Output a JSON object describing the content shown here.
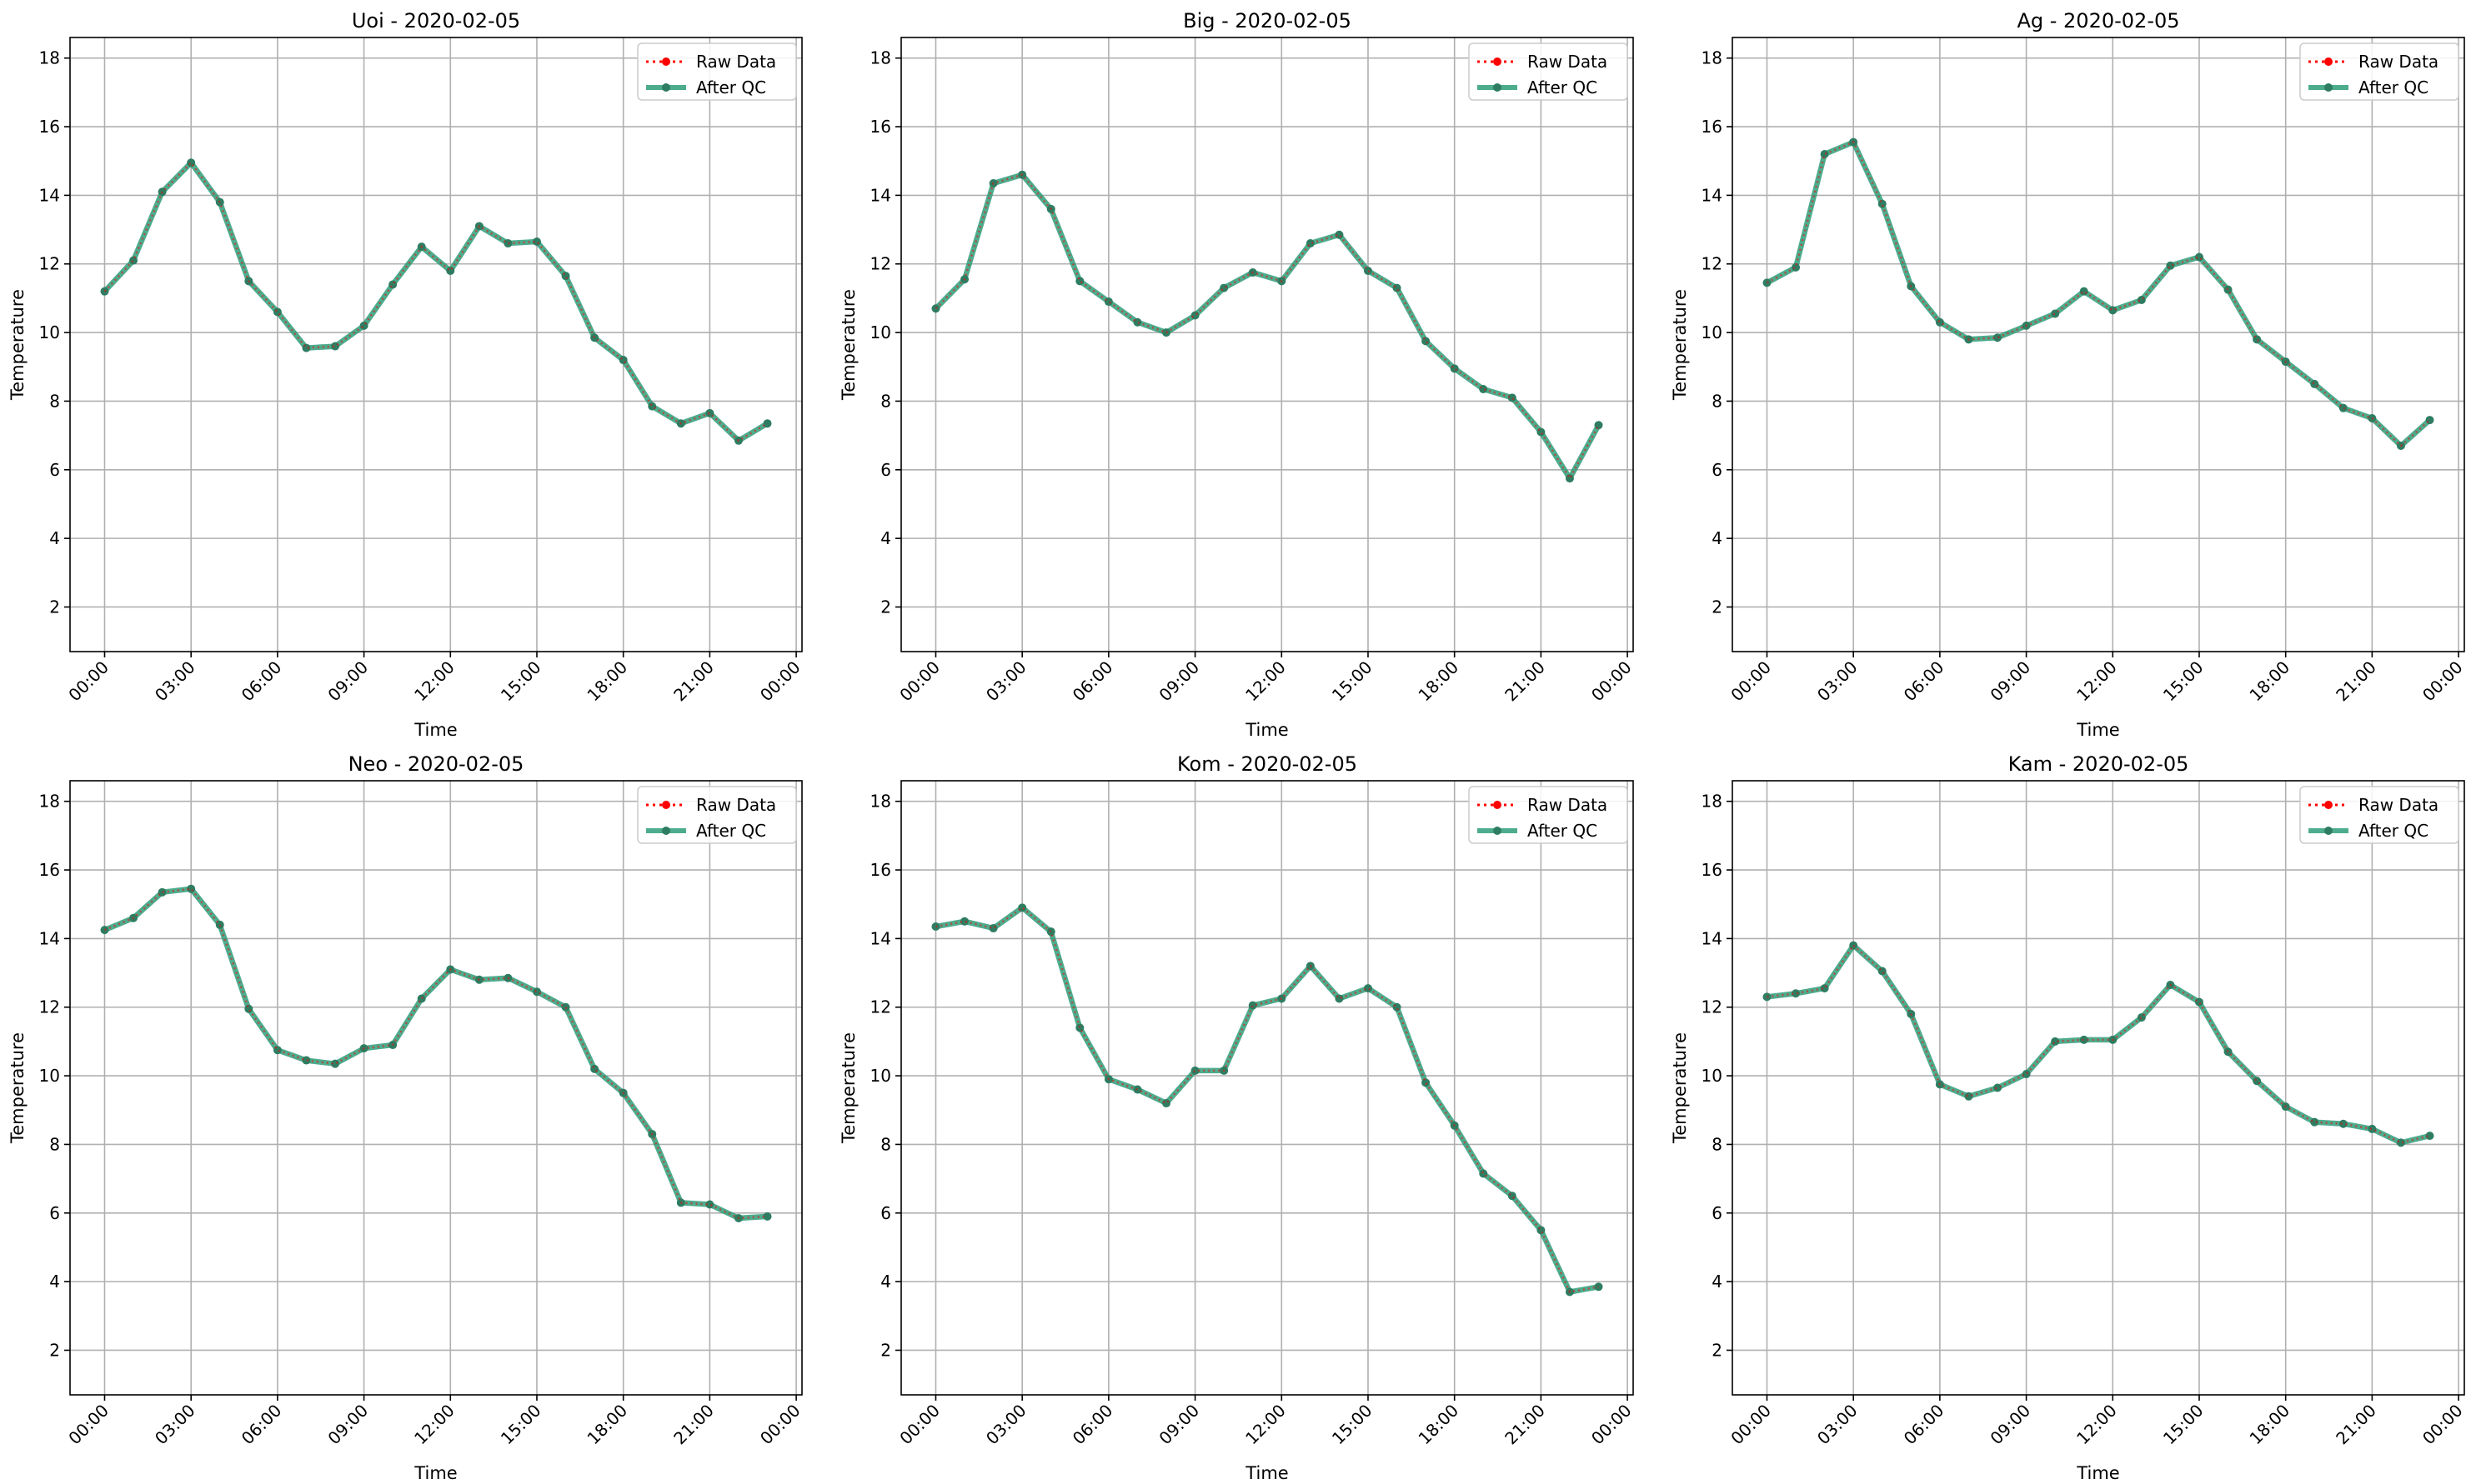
{
  "chart_data": [
    {
      "type": "line",
      "title": "Uoi - 2020-02-05",
      "xlabel": "Time",
      "ylabel": "Temperature",
      "x_tick_labels": [
        "00:00",
        "03:00",
        "06:00",
        "09:00",
        "12:00",
        "15:00",
        "18:00",
        "21:00",
        "00:00"
      ],
      "y_ticks": [
        2,
        4,
        6,
        8,
        10,
        12,
        14,
        16,
        18
      ],
      "ylim": [
        0.7,
        18.6
      ],
      "xlim_hours": [
        -1.2,
        24.2
      ],
      "grid": true,
      "legend_position": "upper right",
      "legend": [
        "Raw Data",
        "After QC"
      ],
      "series": [
        {
          "name": "Raw Data",
          "color": "#ff0000",
          "style": "dotted",
          "values": [
            11.2,
            12.1,
            14.1,
            14.95,
            13.8,
            11.5,
            10.6,
            9.55,
            9.6,
            10.2,
            11.4,
            12.5,
            11.8,
            13.1,
            12.6,
            12.65,
            11.65,
            9.85,
            9.2,
            7.85,
            7.35,
            7.65,
            6.85,
            7.35
          ]
        },
        {
          "name": "After QC",
          "color": "#2e9e7a",
          "style": "solid",
          "values": [
            11.2,
            12.1,
            14.1,
            14.95,
            13.8,
            11.5,
            10.6,
            9.55,
            9.6,
            10.2,
            11.4,
            12.5,
            11.8,
            13.1,
            12.6,
            12.65,
            11.65,
            9.85,
            9.2,
            7.85,
            7.35,
            7.65,
            6.85,
            7.35
          ]
        }
      ]
    },
    {
      "type": "line",
      "title": "Big - 2020-02-05",
      "xlabel": "Time",
      "ylabel": "Temperature",
      "x_tick_labels": [
        "00:00",
        "03:00",
        "06:00",
        "09:00",
        "12:00",
        "15:00",
        "18:00",
        "21:00",
        "00:00"
      ],
      "y_ticks": [
        2,
        4,
        6,
        8,
        10,
        12,
        14,
        16,
        18
      ],
      "ylim": [
        0.7,
        18.6
      ],
      "xlim_hours": [
        -1.2,
        24.2
      ],
      "grid": true,
      "legend_position": "upper right",
      "legend": [
        "Raw Data",
        "After QC"
      ],
      "series": [
        {
          "name": "Raw Data",
          "color": "#ff0000",
          "style": "dotted",
          "values": [
            10.7,
            11.55,
            14.35,
            14.6,
            13.6,
            11.5,
            10.9,
            10.3,
            10.0,
            10.5,
            11.3,
            11.75,
            11.5,
            12.6,
            12.85,
            11.8,
            11.3,
            9.75,
            8.95,
            8.35,
            8.1,
            7.1,
            5.75,
            7.3
          ]
        },
        {
          "name": "After QC",
          "color": "#2e9e7a",
          "style": "solid",
          "values": [
            10.7,
            11.55,
            14.35,
            14.6,
            13.6,
            11.5,
            10.9,
            10.3,
            10.0,
            10.5,
            11.3,
            11.75,
            11.5,
            12.6,
            12.85,
            11.8,
            11.3,
            9.75,
            8.95,
            8.35,
            8.1,
            7.1,
            5.75,
            7.3
          ]
        }
      ]
    },
    {
      "type": "line",
      "title": "Ag - 2020-02-05",
      "xlabel": "Time",
      "ylabel": "Temperature",
      "x_tick_labels": [
        "00:00",
        "03:00",
        "06:00",
        "09:00",
        "12:00",
        "15:00",
        "18:00",
        "21:00",
        "00:00"
      ],
      "y_ticks": [
        2,
        4,
        6,
        8,
        10,
        12,
        14,
        16,
        18
      ],
      "ylim": [
        0.7,
        18.6
      ],
      "xlim_hours": [
        -1.2,
        24.2
      ],
      "grid": true,
      "legend_position": "upper right",
      "legend": [
        "Raw Data",
        "After QC"
      ],
      "series": [
        {
          "name": "Raw Data",
          "color": "#ff0000",
          "style": "dotted",
          "values": [
            11.45,
            11.9,
            15.2,
            15.55,
            13.75,
            11.35,
            10.3,
            9.8,
            9.85,
            10.2,
            10.55,
            11.2,
            10.65,
            10.95,
            11.95,
            12.2,
            11.25,
            9.8,
            9.15,
            8.5,
            7.8,
            7.5,
            6.7,
            7.45
          ]
        },
        {
          "name": "After QC",
          "color": "#2e9e7a",
          "style": "solid",
          "values": [
            11.45,
            11.9,
            15.2,
            15.55,
            13.75,
            11.35,
            10.3,
            9.8,
            9.85,
            10.2,
            10.55,
            11.2,
            10.65,
            10.95,
            11.95,
            12.2,
            11.25,
            9.8,
            9.15,
            8.5,
            7.8,
            7.5,
            6.7,
            7.45
          ]
        }
      ]
    },
    {
      "type": "line",
      "title": "Neo - 2020-02-05",
      "xlabel": "Time",
      "ylabel": "Temperature",
      "x_tick_labels": [
        "00:00",
        "03:00",
        "06:00",
        "09:00",
        "12:00",
        "15:00",
        "18:00",
        "21:00",
        "00:00"
      ],
      "y_ticks": [
        2,
        4,
        6,
        8,
        10,
        12,
        14,
        16,
        18
      ],
      "ylim": [
        0.7,
        18.6
      ],
      "xlim_hours": [
        -1.2,
        24.2
      ],
      "grid": true,
      "legend_position": "upper right",
      "legend": [
        "Raw Data",
        "After QC"
      ],
      "series": [
        {
          "name": "Raw Data",
          "color": "#ff0000",
          "style": "dotted",
          "values": [
            14.25,
            14.6,
            15.35,
            15.45,
            14.4,
            11.95,
            10.75,
            10.45,
            10.35,
            10.8,
            10.9,
            12.25,
            13.1,
            12.8,
            12.85,
            12.45,
            12.0,
            10.2,
            9.5,
            8.3,
            6.3,
            6.25,
            5.85,
            5.9
          ]
        },
        {
          "name": "After QC",
          "color": "#2e9e7a",
          "style": "solid",
          "values": [
            14.25,
            14.6,
            15.35,
            15.45,
            14.4,
            11.95,
            10.75,
            10.45,
            10.35,
            10.8,
            10.9,
            12.25,
            13.1,
            12.8,
            12.85,
            12.45,
            12.0,
            10.2,
            9.5,
            8.3,
            6.3,
            6.25,
            5.85,
            5.9
          ]
        }
      ]
    },
    {
      "type": "line",
      "title": "Kom - 2020-02-05",
      "xlabel": "Time",
      "ylabel": "Temperature",
      "x_tick_labels": [
        "00:00",
        "03:00",
        "06:00",
        "09:00",
        "12:00",
        "15:00",
        "18:00",
        "21:00",
        "00:00"
      ],
      "y_ticks": [
        2,
        4,
        6,
        8,
        10,
        12,
        14,
        16,
        18
      ],
      "ylim": [
        0.7,
        18.6
      ],
      "xlim_hours": [
        -1.2,
        24.2
      ],
      "grid": true,
      "legend_position": "upper right",
      "legend": [
        "Raw Data",
        "After QC"
      ],
      "series": [
        {
          "name": "Raw Data",
          "color": "#ff0000",
          "style": "dotted",
          "values": [
            14.35,
            14.5,
            14.3,
            14.9,
            14.2,
            11.4,
            9.9,
            9.6,
            9.2,
            10.15,
            10.15,
            12.05,
            12.25,
            13.2,
            12.25,
            12.55,
            12.0,
            9.8,
            8.55,
            7.15,
            6.5,
            5.5,
            3.7,
            3.85
          ]
        },
        {
          "name": "After QC",
          "color": "#2e9e7a",
          "style": "solid",
          "values": [
            14.35,
            14.5,
            14.3,
            14.9,
            14.2,
            11.4,
            9.9,
            9.6,
            9.2,
            10.15,
            10.15,
            12.05,
            12.25,
            13.2,
            12.25,
            12.55,
            12.0,
            9.8,
            8.55,
            7.15,
            6.5,
            5.5,
            3.7,
            3.85
          ]
        }
      ]
    },
    {
      "type": "line",
      "title": "Kam - 2020-02-05",
      "xlabel": "Time",
      "ylabel": "Temperature",
      "x_tick_labels": [
        "00:00",
        "03:00",
        "06:00",
        "09:00",
        "12:00",
        "15:00",
        "18:00",
        "21:00",
        "00:00"
      ],
      "y_ticks": [
        2,
        4,
        6,
        8,
        10,
        12,
        14,
        16,
        18
      ],
      "ylim": [
        0.7,
        18.6
      ],
      "xlim_hours": [
        -1.2,
        24.2
      ],
      "grid": true,
      "legend_position": "upper right",
      "legend": [
        "Raw Data",
        "After QC"
      ],
      "series": [
        {
          "name": "Raw Data",
          "color": "#ff0000",
          "style": "dotted",
          "values": [
            12.3,
            12.4,
            12.55,
            13.8,
            13.05,
            11.8,
            9.75,
            9.4,
            9.65,
            10.05,
            11.0,
            11.05,
            11.05,
            11.7,
            12.65,
            12.15,
            10.7,
            9.85,
            9.1,
            8.65,
            8.6,
            8.45,
            8.05,
            8.25
          ]
        },
        {
          "name": "After QC",
          "color": "#2e9e7a",
          "style": "solid",
          "values": [
            12.3,
            12.4,
            12.55,
            13.8,
            13.05,
            11.8,
            9.75,
            9.4,
            9.65,
            10.05,
            11.0,
            11.05,
            11.05,
            11.7,
            12.65,
            12.15,
            10.7,
            9.85,
            9.1,
            8.65,
            8.6,
            8.45,
            8.05,
            8.25
          ]
        }
      ]
    }
  ]
}
